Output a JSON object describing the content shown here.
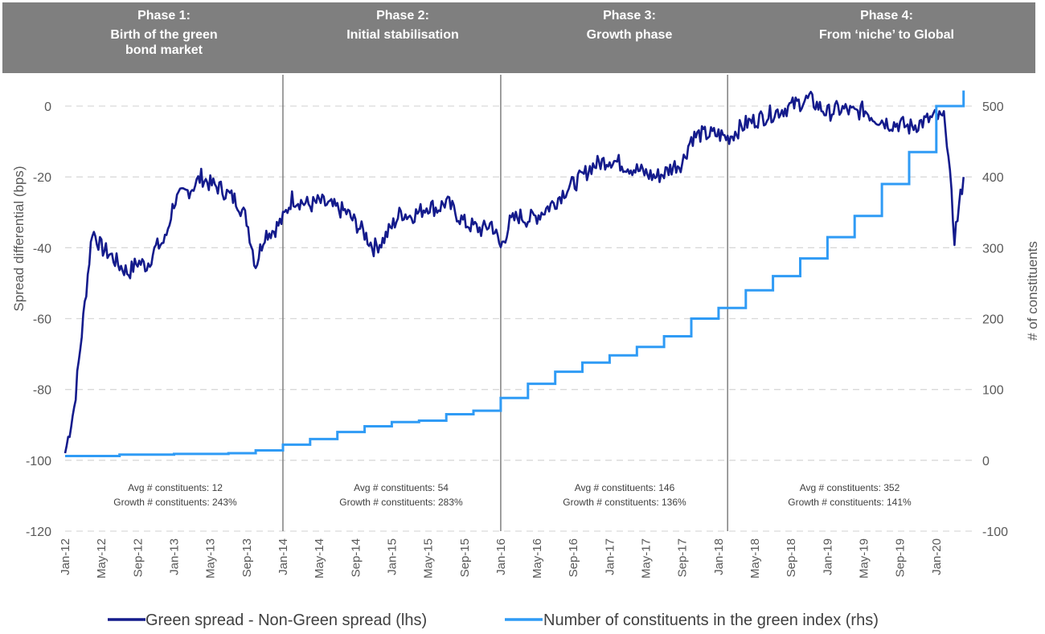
{
  "chart_data": {
    "type": "line",
    "ylabel_left": "Spread differential (bps)",
    "ylabel_right": "# of constituents",
    "ylim_left": [
      -120,
      0
    ],
    "ylim_right": [
      -100,
      500
    ],
    "yticks_left": [
      "0",
      "-20",
      "-40",
      "-60",
      "-80",
      "-100",
      "-120"
    ],
    "yticks_right": [
      "500",
      "400",
      "300",
      "200",
      "100",
      "0",
      "-100"
    ],
    "grid": "horizontal dashed",
    "legend_position": "bottom",
    "x_tick_labels": [
      "Jan-12",
      "May-12",
      "Sep-12",
      "Jan-13",
      "May-13",
      "Sep-13",
      "Jan-14",
      "May-14",
      "Sep-14",
      "Jan-15",
      "May-15",
      "Sep-15",
      "Jan-16",
      "May-16",
      "Sep-16",
      "Jan-17",
      "May-17",
      "Sep-17",
      "Jan-18",
      "May-18",
      "Sep-18",
      "Jan-19",
      "May-19",
      "Sep-19",
      "Jan-20"
    ],
    "phases": [
      {
        "title_line1": "Phase 1:",
        "title_lines": [
          "Birth of the green",
          "bond market"
        ],
        "avg_text": "Avg # constituents: 12",
        "growth_text": "Growth # constituents: 243%"
      },
      {
        "title_line1": "Phase 2:",
        "title_lines": [
          "Initial stabilisation"
        ],
        "avg_text": "Avg # constituents: 54",
        "growth_text": "Growth # constituents: 283%"
      },
      {
        "title_line1": "Phase 3:",
        "title_lines": [
          "Growth phase"
        ],
        "avg_text": "Avg # constituents: 146",
        "growth_text": "Growth # constituents: 136%"
      },
      {
        "title_line1": "Phase 4:",
        "title_lines": [
          "From ‘niche’ to Global"
        ],
        "avg_text": "Avg # constituents: 352",
        "growth_text": "Growth # constituents: 141%"
      }
    ],
    "phase_boundaries": [
      "2014-01",
      "2016-01",
      "2018-02"
    ],
    "series": [
      {
        "name": "Green spread - Non-Green spread (lhs)",
        "axis": "left",
        "color": "#141B8C",
        "x": [
          "2012-01",
          "2012-02",
          "2012-03",
          "2012-04",
          "2012-05",
          "2012-06",
          "2012-07",
          "2012-08",
          "2012-09",
          "2012-10",
          "2012-11",
          "2012-12",
          "2013-01",
          "2013-02",
          "2013-03",
          "2013-04",
          "2013-05",
          "2013-06",
          "2013-07",
          "2013-08",
          "2013-09",
          "2013-10",
          "2013-11",
          "2013-12",
          "2014-01",
          "2014-02",
          "2014-03",
          "2014-04",
          "2014-05",
          "2014-06",
          "2014-07",
          "2014-08",
          "2014-09",
          "2014-10",
          "2014-11",
          "2014-12",
          "2015-01",
          "2015-02",
          "2015-03",
          "2015-04",
          "2015-05",
          "2015-06",
          "2015-07",
          "2015-08",
          "2015-09",
          "2015-10",
          "2015-11",
          "2015-12",
          "2016-01",
          "2016-02",
          "2016-03",
          "2016-04",
          "2016-05",
          "2016-06",
          "2016-07",
          "2016-08",
          "2016-09",
          "2016-10",
          "2016-11",
          "2016-12",
          "2017-01",
          "2017-02",
          "2017-03",
          "2017-04",
          "2017-05",
          "2017-06",
          "2017-07",
          "2017-08",
          "2017-09",
          "2017-10",
          "2017-11",
          "2017-12",
          "2018-01",
          "2018-02",
          "2018-03",
          "2018-04",
          "2018-05",
          "2018-06",
          "2018-07",
          "2018-08",
          "2018-09",
          "2018-10",
          "2018-11",
          "2018-12",
          "2019-01",
          "2019-02",
          "2019-03",
          "2019-04",
          "2019-05",
          "2019-06",
          "2019-07",
          "2019-08",
          "2019-09",
          "2019-10",
          "2019-11",
          "2019-12",
          "2020-01",
          "2020-02",
          "2020-03",
          "2020-04"
        ],
        "values": [
          -98,
          -85,
          -60,
          -35,
          -40,
          -42,
          -45,
          -47,
          -44,
          -45,
          -40,
          -38,
          -27,
          -25,
          -23,
          -20,
          -22,
          -23,
          -25,
          -27,
          -32,
          -45,
          -36,
          -35,
          -32,
          -26,
          -27,
          -28,
          -27,
          -28,
          -29,
          -30,
          -33,
          -36,
          -40,
          -38,
          -34,
          -30,
          -31,
          -30,
          -28,
          -29,
          -27,
          -30,
          -33,
          -34,
          -35,
          -33,
          -40,
          -33,
          -31,
          -32,
          -31,
          -29,
          -27,
          -24,
          -22,
          -20,
          -17,
          -16,
          -15,
          -16,
          -17,
          -18,
          -19,
          -20,
          -19,
          -17,
          -16,
          -9,
          -8,
          -8,
          -8,
          -9,
          -7,
          -5,
          -4,
          -3,
          -2,
          -1,
          0,
          1,
          2,
          0,
          -2,
          -1,
          -1,
          -2,
          -1,
          -3,
          -4,
          -5,
          -5,
          -6,
          -5,
          -4,
          -3,
          -4,
          -37,
          -20
        ]
      },
      {
        "name": "Number of constituents in the green index (rhs)",
        "axis": "right",
        "color": "#2F9BF5",
        "x": [
          "2012-01",
          "2012-07",
          "2013-01",
          "2013-07",
          "2013-10",
          "2014-01",
          "2014-04",
          "2014-07",
          "2014-10",
          "2015-01",
          "2015-04",
          "2015-07",
          "2015-10",
          "2016-01",
          "2016-04",
          "2016-07",
          "2016-10",
          "2017-01",
          "2017-04",
          "2017-07",
          "2017-10",
          "2018-01",
          "2018-04",
          "2018-07",
          "2018-10",
          "2019-01",
          "2019-04",
          "2019-07",
          "2019-10",
          "2020-01",
          "2020-04"
        ],
        "values": [
          6,
          8,
          9,
          10,
          14,
          22,
          30,
          40,
          48,
          54,
          56,
          65,
          70,
          88,
          108,
          125,
          138,
          148,
          160,
          175,
          200,
          215,
          240,
          260,
          285,
          315,
          345,
          390,
          435,
          500,
          522
        ]
      }
    ]
  }
}
